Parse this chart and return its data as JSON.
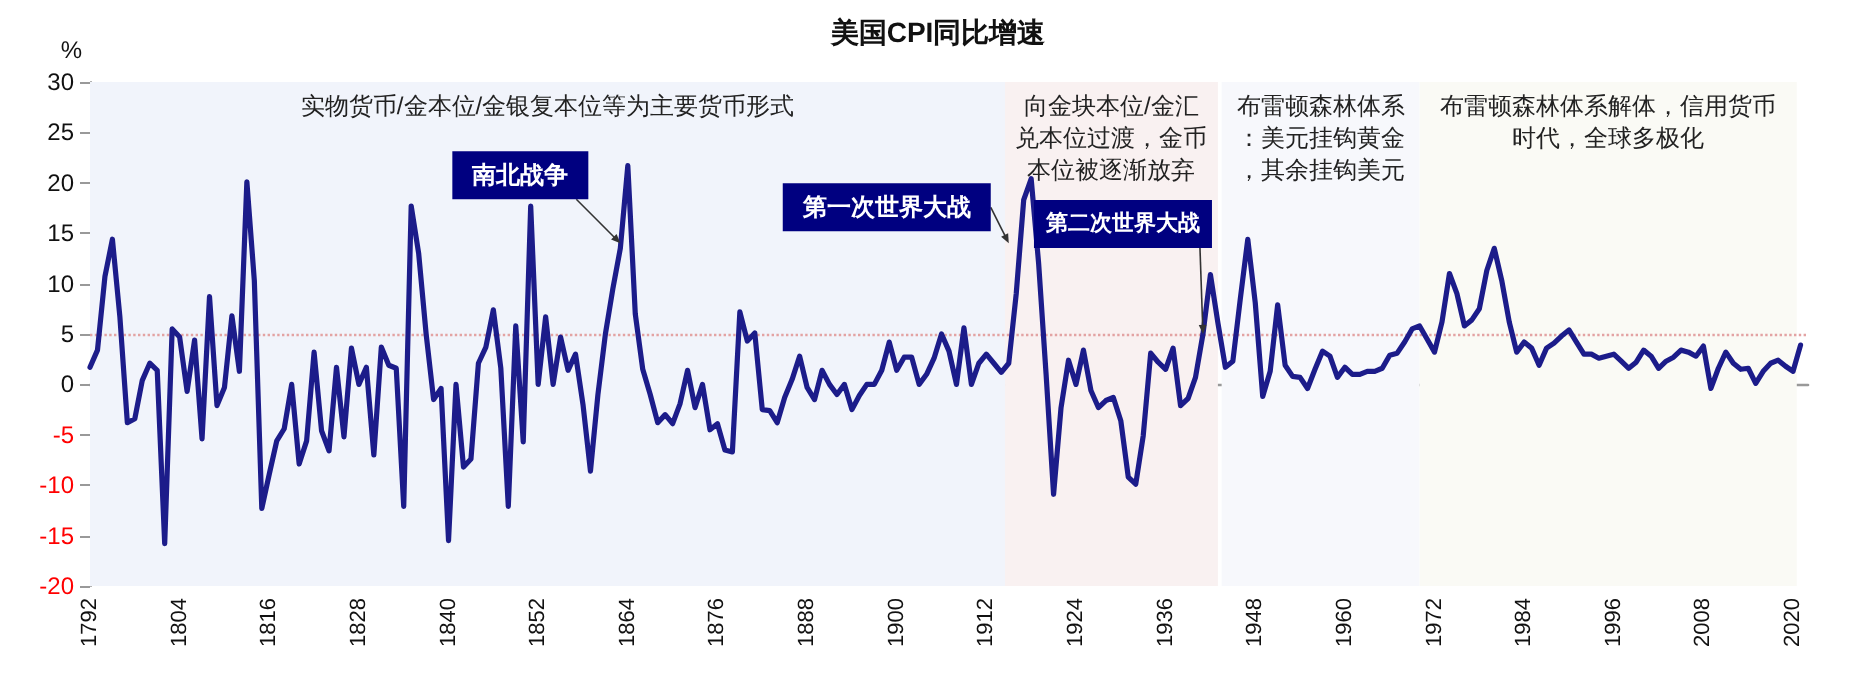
{
  "chart_data": {
    "type": "line",
    "title": "美国CPI同比增速",
    "ylabel": "%",
    "x": [
      1792,
      1793,
      1794,
      1795,
      1796,
      1797,
      1798,
      1799,
      1800,
      1801,
      1802,
      1803,
      1804,
      1805,
      1806,
      1807,
      1808,
      1809,
      1810,
      1811,
      1812,
      1813,
      1814,
      1815,
      1816,
      1817,
      1818,
      1819,
      1820,
      1821,
      1822,
      1823,
      1824,
      1825,
      1826,
      1827,
      1828,
      1829,
      1830,
      1831,
      1832,
      1833,
      1834,
      1835,
      1836,
      1837,
      1838,
      1839,
      1840,
      1841,
      1842,
      1843,
      1844,
      1845,
      1846,
      1847,
      1848,
      1849,
      1850,
      1851,
      1852,
      1853,
      1854,
      1855,
      1856,
      1857,
      1858,
      1859,
      1860,
      1861,
      1862,
      1863,
      1864,
      1865,
      1866,
      1867,
      1868,
      1869,
      1870,
      1871,
      1872,
      1873,
      1874,
      1875,
      1876,
      1877,
      1878,
      1879,
      1880,
      1881,
      1882,
      1883,
      1884,
      1885,
      1886,
      1887,
      1888,
      1889,
      1890,
      1891,
      1892,
      1893,
      1894,
      1895,
      1896,
      1897,
      1898,
      1899,
      1900,
      1901,
      1902,
      1903,
      1904,
      1905,
      1906,
      1907,
      1908,
      1909,
      1910,
      1911,
      1912,
      1913,
      1914,
      1915,
      1916,
      1917,
      1918,
      1919,
      1920,
      1921,
      1922,
      1923,
      1924,
      1925,
      1926,
      1927,
      1928,
      1929,
      1930,
      1931,
      1932,
      1933,
      1934,
      1935,
      1936,
      1937,
      1938,
      1939,
      1940,
      1941,
      1942,
      1943,
      1944,
      1945,
      1946,
      1947,
      1948,
      1949,
      1950,
      1951,
      1952,
      1953,
      1954,
      1955,
      1956,
      1957,
      1958,
      1959,
      1960,
      1961,
      1962,
      1963,
      1964,
      1965,
      1966,
      1967,
      1968,
      1969,
      1970,
      1971,
      1972,
      1973,
      1974,
      1975,
      1976,
      1977,
      1978,
      1979,
      1980,
      1981,
      1982,
      1983,
      1984,
      1985,
      1986,
      1987,
      1988,
      1989,
      1990,
      1991,
      1992,
      1993,
      1994,
      1995,
      1996,
      1997,
      1998,
      1999,
      2000,
      2001,
      2002,
      2003,
      2004,
      2005,
      2006,
      2007,
      2008,
      2009,
      2010,
      2011,
      2012,
      2013,
      2014,
      2015,
      2016,
      2017,
      2018,
      2019,
      2020,
      2021
    ],
    "series": [
      {
        "color": "#1c1c8a",
        "values": [
          1.7,
          3.4,
          10.7,
          14.4,
          6.7,
          -3.8,
          -3.4,
          0.4,
          2.1,
          1.4,
          -15.8,
          5.5,
          4.7,
          -0.7,
          4.4,
          -5.4,
          8.7,
          -2.1,
          -0.3,
          6.8,
          1.3,
          20.1,
          10.3,
          -12.3,
          -8.9,
          -5.6,
          -4.4,
          0,
          -7.9,
          -5.6,
          3.2,
          -4.6,
          -6.6,
          1.7,
          -5.2,
          3.6,
          0,
          1.7,
          -7.0,
          3.7,
          1.9,
          1.6,
          -12.1,
          17.7,
          13.0,
          5.0,
          -1.5,
          -0.4,
          -15.5,
          0,
          -8.2,
          -7.4,
          2.1,
          3.7,
          7.4,
          1.6,
          -12.1,
          5.8,
          -5.7,
          17.7,
          0,
          6.7,
          0,
          4.7,
          1.4,
          3.0,
          -2.0,
          -8.6,
          -1.0,
          5.0,
          9.5,
          13.5,
          21.7,
          7.0,
          1.5,
          -1.0,
          -3.8,
          -3.0,
          -3.9,
          -1.9,
          1.4,
          -2.3,
          0,
          -4.5,
          -3.9,
          -6.5,
          -6.7,
          7.2,
          4.3,
          5.1,
          -2.5,
          -2.6,
          -3.8,
          -1.3,
          0.5,
          2.8,
          -0.3,
          -1.5,
          1.4,
          0,
          -1.0,
          0,
          -2.5,
          -1.1,
          0,
          0,
          1.4,
          4.2,
          1.4,
          2.7,
          2.7,
          0,
          1.0,
          2.6,
          5.0,
          3.3,
          0,
          5.6,
          0,
          2.1,
          3.0,
          2.1,
          1.2,
          2.1,
          9.0,
          18.3,
          20.4,
          12.0,
          1.0,
          -10.9,
          -2.3,
          2.4,
          0,
          3.4,
          -0.6,
          -2.3,
          -1.6,
          -1.3,
          -3.6,
          -9.2,
          -9.9,
          -5.1,
          3.1,
          2.2,
          1.5,
          3.6,
          -2.1,
          -1.4,
          0.7,
          5.0,
          10.9,
          6.1,
          1.7,
          2.3,
          8.5,
          14.4,
          8.1,
          -1.2,
          1.3,
          7.9,
          1.9,
          0.8,
          0.7,
          -0.4,
          1.5,
          3.3,
          2.8,
          0.7,
          1.7,
          1.0,
          1.0,
          1.3,
          1.3,
          1.6,
          2.9,
          3.1,
          4.2,
          5.5,
          5.8,
          4.5,
          3.2,
          6.2,
          11.0,
          9.0,
          5.8,
          6.4,
          7.5,
          11.3,
          13.5,
          10.3,
          6.2,
          3.2,
          4.2,
          3.6,
          1.9,
          3.6,
          4.1,
          4.8,
          5.4,
          4.2,
          3.0,
          3.0,
          2.6,
          2.8,
          3.0,
          2.3,
          1.6,
          2.2,
          3.4,
          2.8,
          1.6,
          2.3,
          2.7,
          3.4,
          3.2,
          2.8,
          3.8,
          -0.4,
          1.6,
          3.2,
          2.1,
          1.5,
          1.6,
          0.1,
          1.3,
          2.1,
          2.4,
          1.8,
          1.3,
          3.9
        ]
      }
    ],
    "xlim": [
      1792,
      2022
    ],
    "xticks": [
      1792,
      1804,
      1816,
      1828,
      1840,
      1852,
      1864,
      1876,
      1888,
      1900,
      1912,
      1924,
      1936,
      1948,
      1960,
      1972,
      1984,
      1996,
      2008,
      2020
    ],
    "ylim": [
      -20,
      30
    ],
    "yticks": [
      -20,
      -15,
      -10,
      -5,
      0,
      5,
      10,
      15,
      20,
      25,
      30
    ],
    "grid": false,
    "marker": "none",
    "line_style": "solid",
    "ref_lines": [
      {
        "axis": "y",
        "value": 5,
        "color": "#e3a3a3",
        "line_style": "dotted"
      }
    ],
    "bands": [
      {
        "axis": "x",
        "from": 1792,
        "to": 1914.5,
        "label": "实物货币/金本位/金银复本位等为主要货币形式",
        "color": "#f1f4fb"
      },
      {
        "axis": "x",
        "from": 1914.5,
        "to": 1943,
        "label": "向金块本位/金汇兑本位过渡，金币本位被逐渐放弃",
        "color": "#f9f1f1"
      },
      {
        "axis": "x",
        "from": 1943.5,
        "to": 1970,
        "label": "布雷顿森林体系：美元挂钩黄金，其余挂钩美元",
        "color": "#f7f8fc"
      },
      {
        "axis": "x",
        "from": 1970,
        "to": 2020.5,
        "label": "布雷顿森林体系解体，信用货币时代，全球多极化",
        "color": "#fafaf5"
      }
    ],
    "annotations": [
      {
        "text": "南北战争",
        "x": 1863,
        "y": 14
      },
      {
        "text": "第一次世界大战",
        "x": 1915,
        "y": 14
      },
      {
        "text": "第二次世界大战",
        "x": 1941,
        "y": 5
      }
    ]
  }
}
